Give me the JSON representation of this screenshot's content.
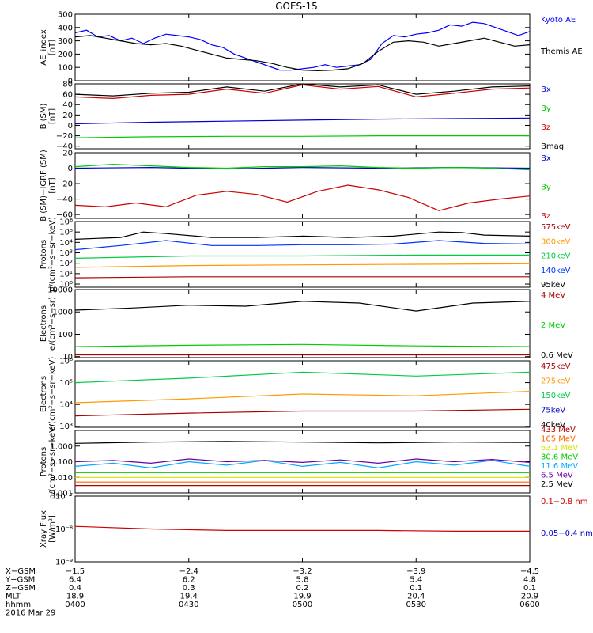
{
  "title": "GOES-15",
  "chart_data": [
    {
      "type": "line",
      "ylabel": [
        "AE_index",
        "[nT]"
      ],
      "ylim": [
        0,
        500
      ],
      "ylog": false,
      "yticks": [
        0,
        100,
        200,
        300,
        400,
        500
      ],
      "ytick_labels": [
        "0",
        "100",
        "200",
        "300",
        "400",
        "500"
      ],
      "series": [
        {
          "name": "Kyoto AE",
          "color": "#0000ff",
          "x": [
            0,
            3,
            6,
            9,
            12,
            15,
            18,
            21,
            24,
            27,
            30,
            33,
            36,
            39,
            42,
            45,
            48,
            51,
            54,
            57,
            60,
            63,
            66,
            69,
            72,
            75,
            78,
            81,
            84,
            87,
            90,
            93,
            96,
            99,
            102,
            105,
            108,
            111,
            114,
            117,
            120
          ],
          "y": [
            360,
            380,
            330,
            340,
            300,
            320,
            280,
            320,
            350,
            340,
            330,
            310,
            270,
            250,
            200,
            170,
            140,
            110,
            80,
            80,
            90,
            100,
            120,
            100,
            110,
            120,
            160,
            280,
            340,
            330,
            350,
            360,
            380,
            420,
            410,
            440,
            430,
            400,
            370,
            340,
            370
          ]
        },
        {
          "name": "Themis AE",
          "color": "#000000",
          "x": [
            0,
            4,
            8,
            12,
            16,
            20,
            24,
            28,
            32,
            36,
            40,
            44,
            48,
            52,
            56,
            60,
            64,
            68,
            72,
            76,
            80,
            84,
            88,
            92,
            96,
            100,
            104,
            108,
            112,
            116,
            120
          ],
          "y": [
            330,
            340,
            320,
            300,
            280,
            270,
            280,
            260,
            230,
            200,
            170,
            160,
            150,
            130,
            100,
            80,
            75,
            80,
            90,
            130,
            220,
            290,
            300,
            290,
            260,
            280,
            300,
            320,
            290,
            260,
            270
          ]
        }
      ]
    },
    {
      "type": "line",
      "ylabel": [
        "B (SM)",
        "[nT]"
      ],
      "ylim": [
        -45,
        80
      ],
      "ylog": false,
      "yticks": [
        -40,
        -20,
        0,
        20,
        40,
        60,
        80
      ],
      "ytick_labels": [
        "−40",
        "−20",
        "0",
        "20",
        "40",
        "60",
        "80"
      ],
      "series": [
        {
          "name": "Bx",
          "color": "#0000cc",
          "x": [
            0,
            20,
            40,
            60,
            80,
            100,
            120
          ],
          "y": [
            3,
            6,
            8,
            10,
            12,
            13,
            14
          ]
        },
        {
          "name": "By",
          "color": "#00cc00",
          "x": [
            0,
            20,
            40,
            60,
            80,
            100,
            120
          ],
          "y": [
            -24,
            -22,
            -21,
            -21,
            -20,
            -20,
            -20
          ]
        },
        {
          "name": "Bz",
          "color": "#cc0000",
          "x": [
            0,
            10,
            20,
            30,
            40,
            50,
            60,
            70,
            80,
            90,
            100,
            110,
            120
          ],
          "y": [
            55,
            52,
            58,
            60,
            70,
            62,
            78,
            70,
            75,
            55,
            62,
            70,
            72
          ]
        },
        {
          "name": "Bmag",
          "color": "#000000",
          "x": [
            0,
            10,
            20,
            30,
            40,
            50,
            60,
            70,
            80,
            90,
            100,
            110,
            120
          ],
          "y": [
            60,
            57,
            62,
            64,
            74,
            66,
            80,
            74,
            78,
            60,
            66,
            74,
            76
          ]
        }
      ]
    },
    {
      "type": "line",
      "ylabel": [
        "B (SM)−IGRF (SM)",
        "[nT]"
      ],
      "ylim": [
        -65,
        20
      ],
      "ylog": false,
      "yticks": [
        -60,
        -40,
        -20,
        0,
        20
      ],
      "ytick_labels": [
        "−60",
        "−40",
        "−20",
        "0",
        "20"
      ],
      "series": [
        {
          "name": "Bx",
          "color": "#0000cc",
          "x": [
            0,
            20,
            40,
            60,
            80,
            100,
            120
          ],
          "y": [
            0,
            1,
            -1,
            1,
            0,
            1,
            0
          ]
        },
        {
          "name": "By",
          "color": "#00cc00",
          "x": [
            0,
            10,
            20,
            30,
            40,
            50,
            60,
            70,
            80,
            90,
            100,
            110,
            120
          ],
          "y": [
            2,
            5,
            3,
            1,
            0,
            2,
            2,
            3,
            1,
            0,
            1,
            0,
            -2
          ]
        },
        {
          "name": "Bz",
          "color": "#cc0000",
          "x": [
            0,
            8,
            16,
            24,
            32,
            40,
            48,
            56,
            64,
            72,
            80,
            88,
            96,
            104,
            112,
            120
          ],
          "y": [
            -48,
            -50,
            -45,
            -50,
            -35,
            -30,
            -34,
            -44,
            -30,
            -22,
            -28,
            -38,
            -55,
            -45,
            -40,
            -36
          ]
        }
      ]
    },
    {
      "type": "line",
      "ylabel": [
        "Protons",
        "p/(cm²−s−sr−keV)"
      ],
      "ylim": [
        0.5,
        1000000
      ],
      "ylog": true,
      "yticks": [
        1,
        10,
        100,
        1000,
        10000,
        100000,
        1000000
      ],
      "ytick_labels": [
        "10⁰",
        "10¹",
        "10²",
        "10³",
        "10⁴",
        "10⁵",
        "10⁶"
      ],
      "series": [
        {
          "name": "575keV",
          "color": "#aa0000",
          "x": [
            0,
            30,
            60,
            90,
            120
          ],
          "y": [
            4,
            5,
            5,
            5,
            5
          ]
        },
        {
          "name": "300keV",
          "color": "#ff9900",
          "x": [
            0,
            30,
            60,
            90,
            120
          ],
          "y": [
            40,
            60,
            70,
            80,
            90
          ]
        },
        {
          "name": "210keV",
          "color": "#00cc44",
          "x": [
            0,
            30,
            60,
            90,
            120
          ],
          "y": [
            300,
            500,
            500,
            600,
            600
          ]
        },
        {
          "name": "140keV",
          "color": "#0033ff",
          "x": [
            0,
            12,
            24,
            36,
            48,
            60,
            72,
            84,
            96,
            108,
            120
          ],
          "y": [
            2000,
            5000,
            15000,
            5000,
            5000,
            6000,
            6000,
            7000,
            15000,
            8000,
            7000
          ]
        },
        {
          "name": "95keV",
          "color": "#000000",
          "x": [
            0,
            12,
            18,
            24,
            36,
            48,
            60,
            72,
            84,
            96,
            102,
            108,
            120
          ],
          "y": [
            20000,
            30000,
            100000,
            70000,
            30000,
            30000,
            40000,
            30000,
            40000,
            100000,
            90000,
            50000,
            40000
          ]
        }
      ]
    },
    {
      "type": "line",
      "ylabel": [
        "Electrons",
        "e/(cm²−s−sr)"
      ],
      "ylim": [
        9,
        10000
      ],
      "ylog": true,
      "yticks": [
        10,
        100,
        1000,
        10000
      ],
      "ytick_labels": [
        "10",
        "100",
        "1000",
        "10000"
      ],
      "series": [
        {
          "name": "4 MeV",
          "color": "#aa0000",
          "x": [
            0,
            30,
            60,
            90,
            120
          ],
          "y": [
            12,
            12,
            12,
            12,
            12
          ]
        },
        {
          "name": "2 MeV",
          "color": "#00cc00",
          "x": [
            0,
            30,
            60,
            90,
            120
          ],
          "y": [
            28,
            32,
            35,
            30,
            28
          ]
        },
        {
          "name": "0.6 MeV",
          "color": "#000000",
          "x": [
            0,
            15,
            30,
            45,
            60,
            75,
            90,
            105,
            120
          ],
          "y": [
            1200,
            1500,
            2000,
            1800,
            3000,
            2500,
            1100,
            2500,
            3000
          ]
        }
      ]
    },
    {
      "type": "line",
      "ylabel": [
        "Electrons",
        "e/(cm²−s−sr−keV)"
      ],
      "ylim": [
        900,
        1000000
      ],
      "ylog": true,
      "yticks": [
        1000,
        10000,
        100000,
        1000000
      ],
      "ytick_labels": [
        "10³",
        "10⁴",
        "10⁵",
        "10⁶"
      ],
      "series": [
        {
          "name": "475keV",
          "color": "#aa0000",
          "x": [
            0,
            30,
            60,
            90,
            120
          ],
          "y": [
            3000,
            4000,
            5000,
            5000,
            6000
          ]
        },
        {
          "name": "275keV",
          "color": "#ff9900",
          "x": [
            0,
            30,
            60,
            90,
            120
          ],
          "y": [
            12000,
            18000,
            30000,
            25000,
            40000
          ]
        },
        {
          "name": "150keV",
          "color": "#00cc44",
          "x": [
            0,
            30,
            60,
            90,
            120
          ],
          "y": [
            100000,
            160000,
            300000,
            200000,
            300000
          ]
        },
        {
          "name": "75keV",
          "color": "#0000cc",
          "x": [],
          "y": []
        },
        {
          "name": "40keV",
          "color": "#000000",
          "x": [],
          "y": []
        }
      ]
    },
    {
      "type": "line",
      "ylabel": [
        "Protons",
        "p/(cm²−s−sr−keV)"
      ],
      "ylim": [
        0.001,
        10
      ],
      "ylog": true,
      "yticks": [
        0.001,
        0.01,
        0.1,
        1
      ],
      "ytick_labels": [
        "0.001",
        "0.010",
        "0.100",
        "1.000"
      ],
      "series": [
        {
          "name": "433 MeV",
          "color": "#aa0000",
          "x": [
            0,
            30,
            60,
            90,
            120
          ],
          "y": [
            0.003,
            0.003,
            0.003,
            0.003,
            0.003
          ]
        },
        {
          "name": "165 MeV",
          "color": "#ff6600",
          "x": [
            0,
            30,
            60,
            90,
            120
          ],
          "y": [
            0.005,
            0.005,
            0.005,
            0.005,
            0.005
          ]
        },
        {
          "name": "63.1 MeV",
          "color": "#dddd00",
          "x": [
            0,
            30,
            60,
            90,
            120
          ],
          "y": [
            0.01,
            0.01,
            0.01,
            0.01,
            0.01
          ]
        },
        {
          "name": "30.6 MeV",
          "color": "#00cc00",
          "x": [
            0,
            30,
            60,
            90,
            120
          ],
          "y": [
            0.02,
            0.02,
            0.02,
            0.02,
            0.02
          ]
        },
        {
          "name": "11.6 MeV",
          "color": "#00aaff",
          "x": [
            0,
            10,
            20,
            30,
            40,
            50,
            60,
            70,
            80,
            90,
            100,
            110,
            120
          ],
          "y": [
            0.05,
            0.08,
            0.04,
            0.1,
            0.06,
            0.12,
            0.05,
            0.09,
            0.04,
            0.1,
            0.06,
            0.12,
            0.05
          ]
        },
        {
          "name": "6.5 MeV",
          "color": "#6600aa",
          "x": [
            0,
            10,
            20,
            30,
            40,
            50,
            60,
            70,
            80,
            90,
            100,
            110,
            120
          ],
          "y": [
            0.1,
            0.12,
            0.08,
            0.15,
            0.1,
            0.12,
            0.09,
            0.13,
            0.08,
            0.15,
            0.1,
            0.14,
            0.09
          ]
        },
        {
          "name": "2.5 MeV",
          "color": "#000000",
          "x": [
            0,
            20,
            40,
            60,
            80,
            100,
            120
          ],
          "y": [
            1.5,
            1.8,
            2,
            1.8,
            1.6,
            1.8,
            1.7
          ]
        }
      ]
    },
    {
      "type": "line",
      "ylabel": [
        "Xray Flux",
        "[W/m²]"
      ],
      "ylim": [
        1e-09,
        1e-07
      ],
      "ylog": true,
      "yticks": [
        1e-09,
        1e-08,
        1e-07
      ],
      "ytick_labels": [
        "10⁻⁹",
        "10⁻⁸",
        "10⁻⁷"
      ],
      "series": [
        {
          "name": "0.1−0.8 nm",
          "color": "#cc0000",
          "x": [
            0,
            20,
            40,
            60,
            80,
            100,
            120
          ],
          "y": [
            1.2e-08,
            1e-08,
            9e-09,
            9e-09,
            9e-09,
            8.5e-09,
            8.5e-09
          ]
        },
        {
          "name": "0.05−0.4 nm",
          "color": "#0000cc",
          "x": [],
          "y": []
        }
      ]
    }
  ],
  "xaxis": {
    "xlim": [
      0,
      120
    ],
    "ticks": [
      0,
      30,
      60,
      90,
      120
    ],
    "row_labels": [
      "X−GSM",
      "Y−GSM",
      "Z−GSM",
      "MLT",
      "hhmm"
    ],
    "columns": [
      [
        "−1.5",
        "6.4",
        "0.4",
        "18.9",
        "0400"
      ],
      [
        "−2.4",
        "6.2",
        "0.3",
        "19.4",
        "0430"
      ],
      [
        "−3.2",
        "5.8",
        "0.2",
        "19.9",
        "0500"
      ],
      [
        "−3.9",
        "5.4",
        "0.1",
        "20.4",
        "0530"
      ],
      [
        "−4.5",
        "4.8",
        "0.1",
        "20.9",
        "0600"
      ]
    ],
    "date": "2016 Mar 29"
  }
}
